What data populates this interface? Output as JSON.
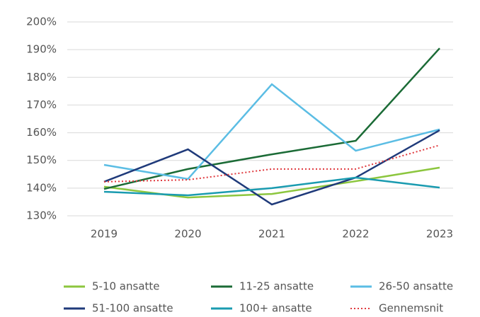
{
  "chart_data": {
    "type": "line",
    "categories": [
      "2019",
      "2020",
      "2021",
      "2022",
      "2023"
    ],
    "series": [
      {
        "name": "5-10 ansatte",
        "color": "#8cc63e",
        "values": [
          140.5,
          136.6,
          137.9,
          142.5,
          147.4
        ]
      },
      {
        "name": "11-25 ansatte",
        "color": "#1b6b36",
        "values": [
          139.7,
          146.9,
          152.2,
          157.1,
          190.5
        ]
      },
      {
        "name": "26-50 ansatte",
        "color": "#5bbde4",
        "values": [
          148.4,
          143.3,
          177.5,
          153.5,
          161.2
        ]
      },
      {
        "name": "51-100 ansatte",
        "color": "#1f3a7a",
        "values": [
          142.3,
          154.0,
          134.1,
          143.8,
          160.9
        ]
      },
      {
        "name": "100+ ansatte",
        "color": "#1a9bb0",
        "values": [
          138.7,
          137.4,
          140.0,
          143.8,
          140.2
        ]
      },
      {
        "name": "Gennemsnit",
        "color": "#e0393e",
        "dotted": true,
        "values": [
          142.3,
          143.0,
          146.9,
          146.9,
          155.5
        ]
      }
    ],
    "ylim": [
      130,
      200
    ],
    "yticks": [
      {
        "value": 130,
        "label": "130%"
      },
      {
        "value": 140,
        "label": "140%"
      },
      {
        "value": 150,
        "label": "150%"
      },
      {
        "value": 160,
        "label": "160%"
      },
      {
        "value": 170,
        "label": "170%"
      },
      {
        "value": 180,
        "label": "180%"
      },
      {
        "value": 190,
        "label": "190%"
      },
      {
        "value": 200,
        "label": "200%"
      }
    ],
    "grid": true,
    "legend": "bottom"
  }
}
